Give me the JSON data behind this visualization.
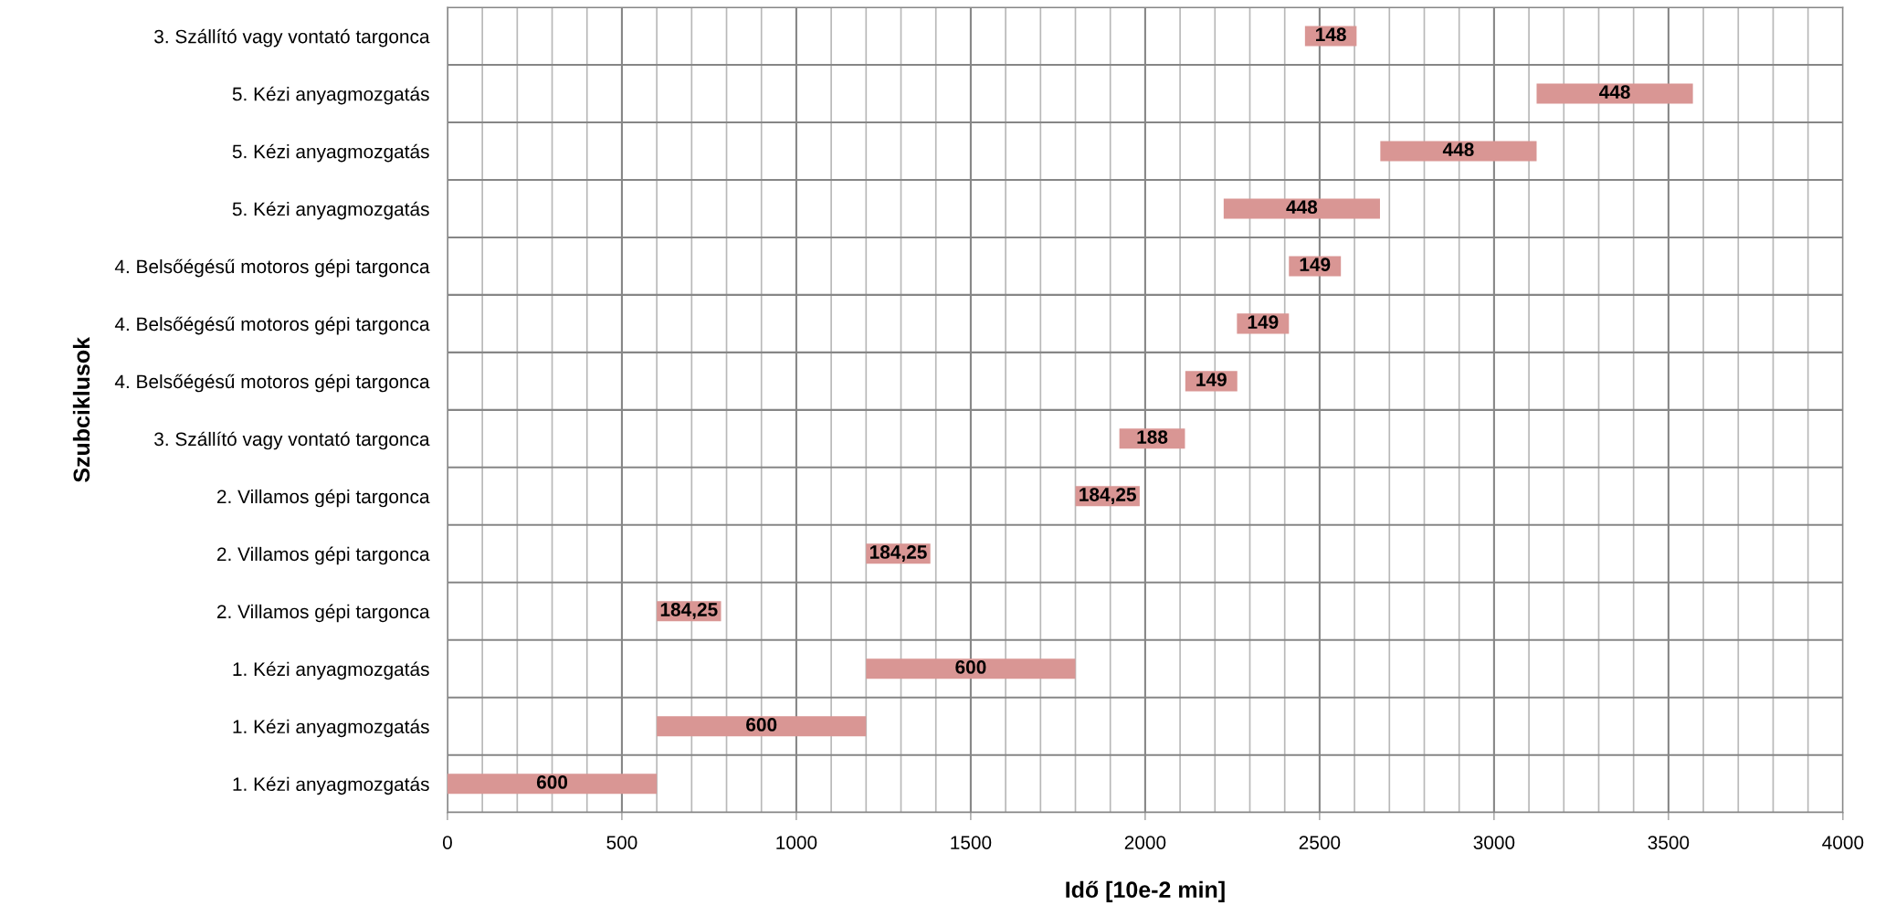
{
  "chart_data": {
    "type": "bar",
    "orientation": "horizontal",
    "xlabel": "Idő [10e-2 min]",
    "ylabel": "Szubciklusok",
    "categories": [
      "3. Szállító vagy vontató targonca",
      "5. Kézi anyagmozgatás",
      "5. Kézi anyagmozgatás",
      "5. Kézi anyagmozgatás",
      "4. Belsőégésű motoros gépi targonca",
      "4. Belsőégésű motoros gépi targonca",
      "4. Belsőégésű motoros gépi targonca",
      "3. Szállító vagy vontató targonca",
      "2. Villamos gépi targonca",
      "2. Villamos gépi targonca",
      "2. Villamos gépi targonca",
      "1. Kézi anyagmozgatás",
      "1. Kézi anyagmozgatás",
      "1. Kézi anyagmozgatás"
    ],
    "values": [
      148,
      448,
      448,
      448,
      149,
      149,
      149,
      188,
      184.25,
      184.25,
      184.25,
      600,
      600,
      600
    ],
    "base": [
      2458,
      3122,
      2674,
      2225,
      2412,
      2263,
      2115,
      1926,
      1800,
      1200,
      600,
      1200,
      600,
      0
    ],
    "value_labels": [
      "148",
      "448",
      "448",
      "448",
      "149",
      "149",
      "149",
      "188",
      "184,25",
      "184,25",
      "184,25",
      "600",
      "600",
      "600"
    ],
    "color": "#d99694",
    "xlim": [
      0,
      4000
    ],
    "xticks": [
      0,
      500,
      1000,
      1500,
      2000,
      2500,
      3000,
      3500,
      4000
    ],
    "grid": true
  }
}
